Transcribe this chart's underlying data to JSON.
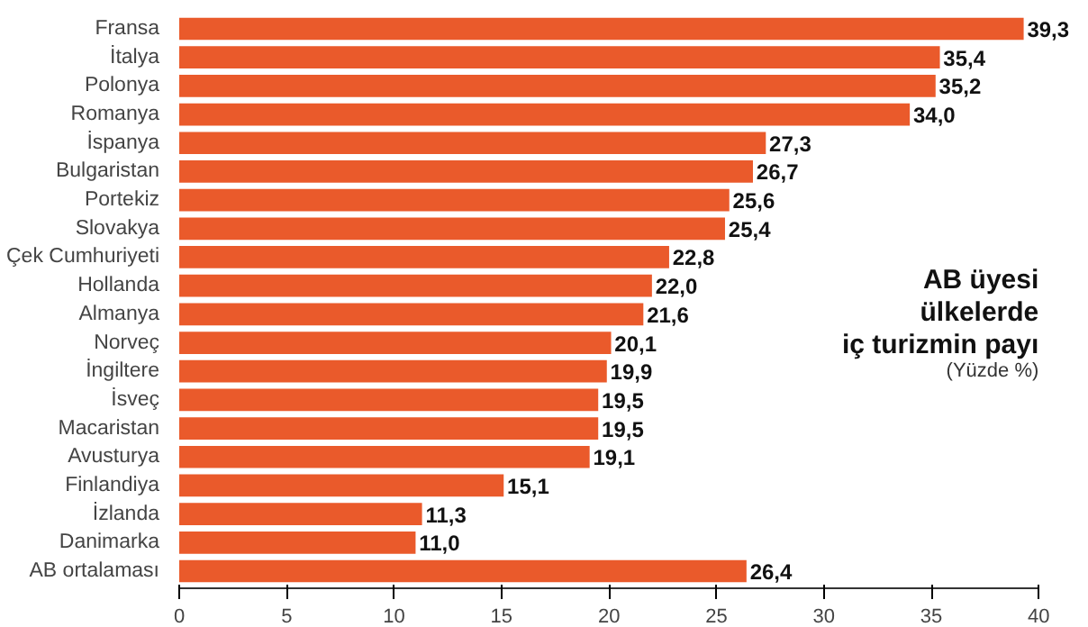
{
  "chart_data": {
    "type": "bar",
    "orientation": "horizontal",
    "title": "AB üyesi\nülkelerde\niç turizmin payı",
    "subtitle": "(Yüzde %)",
    "categories": [
      "Fransa",
      "İtalya",
      "Polonya",
      "Romanya",
      "İspanya",
      "Bulgaristan",
      "Portekiz",
      "Slovakya",
      "Çek Cumhuriyeti",
      "Hollanda",
      "Almanya",
      "Norveç",
      "İngiltere",
      "İsveç",
      "Macaristan",
      "Avusturya",
      "Finlandiya",
      "İzlanda",
      "Danimarka",
      "AB ortalaması"
    ],
    "values": [
      39.3,
      35.4,
      35.2,
      34.0,
      27.3,
      26.7,
      25.6,
      25.4,
      22.8,
      22.0,
      21.6,
      20.1,
      19.9,
      19.5,
      19.5,
      19.1,
      15.1,
      11.3,
      11.0,
      26.4
    ],
    "value_labels": [
      "39,3",
      "35,4",
      "35,2",
      "34,0",
      "27,3",
      "26,7",
      "25,6",
      "25,4",
      "22,8",
      "22,0",
      "21,6",
      "20,1",
      "19,9",
      "19,5",
      "19,5",
      "19,1",
      "15,1",
      "11,3",
      "11,0",
      "26,4"
    ],
    "color": "#ea5a2b",
    "xlim": [
      0,
      40
    ],
    "xticks": [
      0,
      5,
      10,
      15,
      20,
      25,
      30,
      35,
      40
    ],
    "grid": false
  }
}
